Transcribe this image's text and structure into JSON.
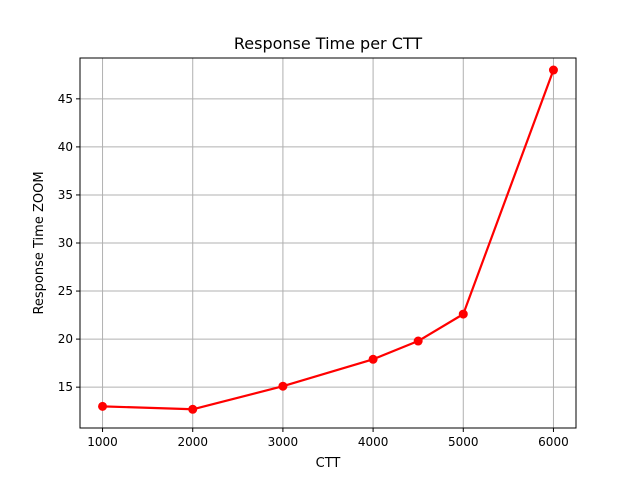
{
  "chart_data": {
    "type": "line",
    "title": "Response Time per CTT",
    "xlabel": "CTT",
    "ylabel": "Response Time ZOOM",
    "x": [
      1000,
      2000,
      3000,
      4000,
      4500,
      5000,
      6000
    ],
    "series": [
      {
        "values": [
          13.0,
          12.7,
          15.1,
          17.9,
          19.8,
          22.6,
          48.0
        ],
        "color": "#ff0000",
        "marker": "circle"
      }
    ],
    "xlim": [
      750,
      6250
    ],
    "ylim": [
      10.75,
      49.25
    ],
    "xticks": [
      1000,
      2000,
      3000,
      4000,
      5000,
      6000
    ],
    "yticks": [
      15,
      20,
      25,
      30,
      35,
      40,
      45
    ],
    "grid": true,
    "grid_color": "#b0b0b0"
  }
}
